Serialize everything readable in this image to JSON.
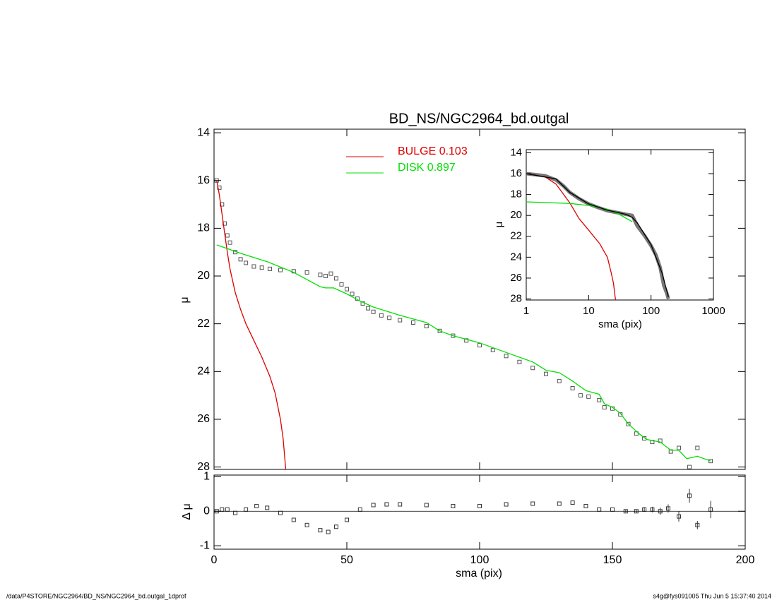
{
  "chart_data": [
    {
      "type": "line",
      "title": "BD_NS/NGC2964_bd.outgal",
      "ylabel": "μ",
      "xlim": [
        0,
        200
      ],
      "ylim": [
        28.1,
        13.85
      ],
      "xticks": [
        0,
        50,
        100,
        150,
        200
      ],
      "xtick_labels": false,
      "yticks": [
        14,
        16,
        18,
        20,
        22,
        24,
        26,
        28
      ],
      "legend": "top",
      "series": [
        {
          "marker": "square",
          "color": "#555555",
          "x": [
            1,
            2,
            3,
            4,
            5,
            6,
            8,
            10,
            12,
            15,
            18,
            21,
            25,
            30,
            35,
            40,
            42,
            44,
            46,
            48,
            50,
            52,
            54,
            56,
            58,
            60,
            63,
            66,
            70,
            75,
            80,
            85,
            90,
            95,
            100,
            105,
            110,
            115,
            120,
            125,
            130,
            135,
            138,
            141,
            145,
            147,
            150,
            153,
            156,
            159,
            162,
            165,
            168,
            172,
            175,
            179,
            182,
            187
          ],
          "values": [
            16.0,
            16.3,
            17.0,
            17.8,
            18.3,
            18.6,
            19.0,
            19.3,
            19.45,
            19.6,
            19.65,
            19.7,
            19.75,
            19.8,
            19.85,
            19.95,
            20.0,
            19.9,
            20.1,
            20.35,
            20.55,
            20.75,
            20.95,
            21.15,
            21.35,
            21.5,
            21.65,
            21.75,
            21.85,
            21.95,
            22.1,
            22.3,
            22.5,
            22.7,
            22.9,
            23.1,
            23.35,
            23.6,
            23.85,
            24.1,
            24.4,
            24.7,
            25.0,
            25.05,
            25.2,
            25.5,
            25.55,
            25.8,
            26.2,
            26.6,
            26.8,
            26.95,
            26.9,
            27.35,
            27.2,
            28.0,
            27.2,
            27.75
          ]
        },
        {
          "name": "BULGE  0.103",
          "marker": "line",
          "color": "#dd0000",
          "x": [
            1,
            2,
            3,
            4,
            5,
            6,
            8,
            10,
            12,
            15,
            18,
            21,
            23,
            25,
            26,
            27
          ],
          "values": [
            16.0,
            16.6,
            17.4,
            18.2,
            19.0,
            19.7,
            20.7,
            21.4,
            22.0,
            22.7,
            23.4,
            24.2,
            24.9,
            26.0,
            26.8,
            28.1
          ]
        },
        {
          "name": "DISK  0.897",
          "marker": "line",
          "color": "#00e000",
          "x": [
            1,
            5,
            10,
            20,
            30,
            40,
            42,
            45,
            50,
            55,
            60,
            70,
            80,
            85,
            90,
            100,
            110,
            120,
            125,
            130,
            135,
            140,
            145,
            147,
            150,
            153,
            156,
            160,
            163,
            168,
            172,
            175,
            178,
            182,
            187
          ],
          "values": [
            18.7,
            18.85,
            19.05,
            19.4,
            19.85,
            20.45,
            20.5,
            20.5,
            20.75,
            21.05,
            21.3,
            21.65,
            21.95,
            22.3,
            22.5,
            22.8,
            23.2,
            23.6,
            23.95,
            24.05,
            24.4,
            24.8,
            24.95,
            25.35,
            25.5,
            25.75,
            26.2,
            26.6,
            26.85,
            26.95,
            27.3,
            27.3,
            27.65,
            27.55,
            27.75
          ]
        }
      ]
    },
    {
      "type": "line",
      "ylabel": "Δ μ",
      "xlabel": "sma (pix)",
      "xlim": [
        0,
        200
      ],
      "ylim": [
        -1.1,
        1.05
      ],
      "xticks": [
        0,
        50,
        100,
        150,
        200
      ],
      "yticks": [
        -1,
        0,
        1
      ],
      "hline": 0,
      "series": [
        {
          "marker": "square",
          "color": "#333333",
          "x": [
            1,
            3,
            5,
            8,
            12,
            16,
            20,
            25,
            30,
            35,
            40,
            43,
            46,
            50,
            55,
            60,
            65,
            70,
            80,
            90,
            100,
            110,
            120,
            130,
            135,
            140,
            145,
            150
          ],
          "values": [
            0,
            0.05,
            0.05,
            -0.05,
            0.05,
            0.15,
            0.1,
            -0.05,
            -0.25,
            -0.4,
            -0.55,
            -0.6,
            -0.45,
            -0.25,
            0.05,
            0.18,
            0.2,
            0.2,
            0.18,
            0.15,
            0.15,
            0.2,
            0.22,
            0.22,
            0.25,
            0.15,
            0.05,
            0.05
          ]
        },
        {
          "marker": "square",
          "color": "#333333",
          "x": [
            155,
            159,
            162,
            165,
            168,
            171,
            175,
            179,
            182,
            187
          ],
          "values": [
            0,
            0,
            0.05,
            0.05,
            0,
            0.08,
            -0.15,
            0.45,
            -0.4,
            0.05
          ],
          "errors": [
            0.03,
            0.05,
            0.07,
            0.08,
            0.1,
            0.12,
            0.15,
            0.2,
            0.12,
            0.25
          ]
        }
      ]
    },
    {
      "type": "line",
      "ylabel": "μ",
      "xlabel": "sma (pix)",
      "xlog": true,
      "xlim": [
        1,
        1000
      ],
      "ylim": [
        28.1,
        13.7
      ],
      "xticks": [
        1,
        10,
        100,
        1000
      ],
      "yticks": [
        14,
        16,
        18,
        20,
        22,
        24,
        26,
        28
      ],
      "series": [
        {
          "marker": "thick",
          "color": "#777777",
          "x": [
            1,
            2,
            3,
            4,
            5,
            7,
            10,
            15,
            20,
            30,
            40,
            50,
            60,
            80,
            100,
            120,
            140,
            160,
            180,
            190
          ],
          "values": [
            16.0,
            16.2,
            16.6,
            17.2,
            17.8,
            18.4,
            18.9,
            19.3,
            19.55,
            19.75,
            19.9,
            20.0,
            21.0,
            22.0,
            22.9,
            23.8,
            25.0,
            26.7,
            27.5,
            28.0
          ]
        },
        {
          "marker": "line",
          "color": "#dd0000",
          "x": [
            1,
            2,
            3,
            5,
            7,
            10,
            15,
            20,
            23,
            25,
            27
          ],
          "values": [
            16.0,
            16.3,
            17.0,
            18.8,
            20.3,
            21.4,
            22.7,
            24.0,
            25.5,
            26.5,
            28.1
          ]
        },
        {
          "marker": "line",
          "color": "#00e000",
          "x": [
            1,
            5,
            10,
            20,
            30,
            50
          ],
          "values": [
            18.7,
            18.85,
            19.05,
            19.4,
            19.85,
            20.6
          ]
        },
        {
          "marker": "line",
          "color": "#000000",
          "x": [
            1,
            3,
            5,
            10,
            20,
            40,
            50,
            60,
            100,
            150,
            190
          ],
          "values": [
            16.0,
            16.5,
            17.8,
            18.9,
            19.5,
            19.9,
            20.2,
            20.7,
            22.8,
            25.5,
            27.8
          ]
        }
      ]
    }
  ],
  "footer": {
    "left": "/data/P4STORE/NGC2964/BD_NS/NGC2964_bd.outgal_1dprof",
    "right": "s4g@fys091005  Thu Jun  5 15:37:40 2014"
  }
}
